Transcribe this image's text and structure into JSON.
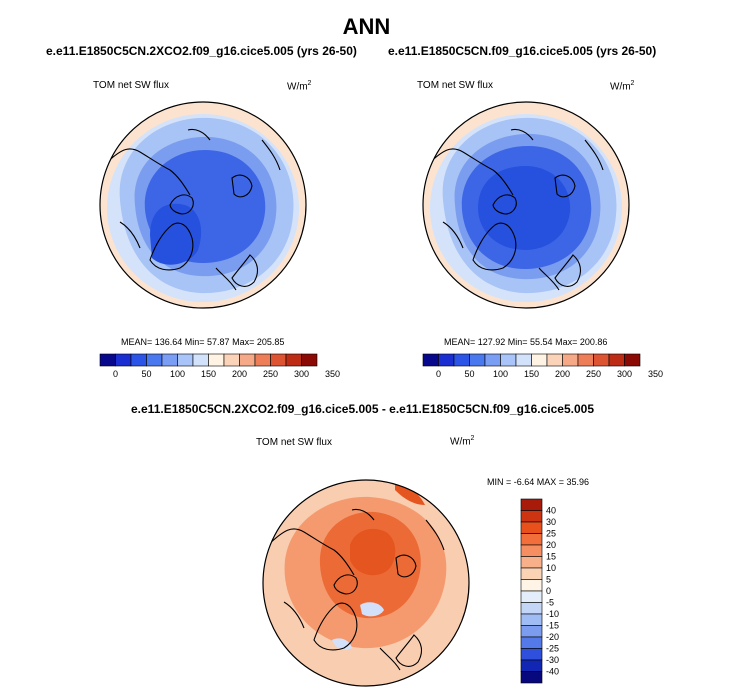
{
  "title": "ANN",
  "panels": [
    {
      "case": "e.e11.E1850C5CN.2XCO2.f09_g16.cice5.005 (yrs 26-50)",
      "variable": "TOM net SW flux",
      "units_base": "W/m",
      "units_exp": "2",
      "stats": "MEAN= 136.64  Min=  57.87  Max= 205.85"
    },
    {
      "case": "e.e11.E1850C5CN.f09_g16.cice5.005 (yrs 26-50)",
      "variable": "TOM net SW flux",
      "units_base": "W/m",
      "units_exp": "2",
      "stats": "MEAN= 127.92  Min=  55.54  Max= 200.86"
    }
  ],
  "diff_panel": {
    "case": "e.e11.E1850C5CN.2XCO2.f09_g16.cice5.005 - e.e11.E1850C5CN.f09_g16.cice5.005",
    "variable": "TOM net SW flux",
    "units_base": "W/m",
    "units_exp": "2",
    "stats": "MIN =  -6.64 MAX =  35.96"
  },
  "abs_colorbar": {
    "labels": [
      "0",
      "50",
      "100",
      "150",
      "200",
      "250",
      "300",
      "350"
    ],
    "colors": [
      "#08088c",
      "#1a2ed2",
      "#2c55e8",
      "#4a78ee",
      "#7a9ef4",
      "#a9c4f8",
      "#d2e2fb",
      "#fff3e3",
      "#fbd3b8",
      "#f6a986",
      "#ee7e58",
      "#dd5432",
      "#bd2c14",
      "#8c0a06"
    ]
  },
  "diff_colorbar": {
    "labels": [
      "40",
      "30",
      "25",
      "20",
      "15",
      "10",
      "5",
      "0",
      "-5",
      "-10",
      "-15",
      "-20",
      "-25",
      "-30",
      "-40"
    ],
    "colors": [
      "#a81a0a",
      "#cc3412",
      "#e8501c",
      "#f26e3a",
      "#f58f62",
      "#f7b08a",
      "#fad2b4",
      "#fff4e6",
      "#e4eefb",
      "#c4d6f7",
      "#a0bcf4",
      "#7b9cef",
      "#5479e8",
      "#2e50dc",
      "#1127b4",
      "#08087e"
    ]
  },
  "map_colors": {
    "abs_outer": "#fbe3d0",
    "abs_ring1": "#d4e3fa",
    "abs_ring2": "#a8c3f5",
    "abs_ring3": "#7b9def",
    "abs_core": "#3d66e6",
    "abs_core_deep": "#2651de",
    "diff_base": "#f9cdb0",
    "diff_mid": "#f49a6e",
    "diff_core": "#ec6a35",
    "diff_hot": "#e4551f",
    "diff_cool": "#d2e0fa",
    "coast": "#000000"
  }
}
